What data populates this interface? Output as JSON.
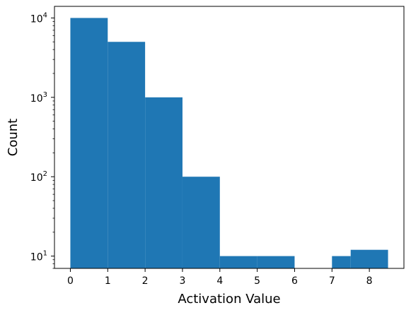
{
  "chart_data": {
    "type": "bar",
    "xlabel": "Activation Value",
    "ylabel": "Count",
    "yscale": "log",
    "xlim": [
      -0.425,
      8.925
    ],
    "ylim": [
      7,
      14000
    ],
    "grid": false,
    "bar_color": "#1f77b4",
    "xticks": [
      0,
      1,
      2,
      3,
      4,
      5,
      6,
      7,
      8
    ],
    "xtick_labels": [
      "0",
      "1",
      "2",
      "3",
      "4",
      "5",
      "6",
      "7",
      "8"
    ],
    "yticks": [
      {
        "value": 10,
        "base": "10",
        "exp": "1"
      },
      {
        "value": 100,
        "base": "10",
        "exp": "2"
      },
      {
        "value": 1000,
        "base": "10",
        "exp": "3"
      },
      {
        "value": 10000,
        "base": "10",
        "exp": "4"
      }
    ],
    "bins": [
      {
        "x0": 0,
        "x1": 1,
        "count": 10000
      },
      {
        "x0": 1,
        "x1": 2,
        "count": 5000
      },
      {
        "x0": 2,
        "x1": 3,
        "count": 1000
      },
      {
        "x0": 3,
        "x1": 4,
        "count": 100
      },
      {
        "x0": 4,
        "x1": 5,
        "count": 10
      },
      {
        "x0": 5,
        "x1": 6,
        "count": 10
      },
      {
        "x0": 7,
        "x1": 7.5,
        "count": 10
      },
      {
        "x0": 7.5,
        "x1": 8.5,
        "count": 12
      }
    ]
  }
}
